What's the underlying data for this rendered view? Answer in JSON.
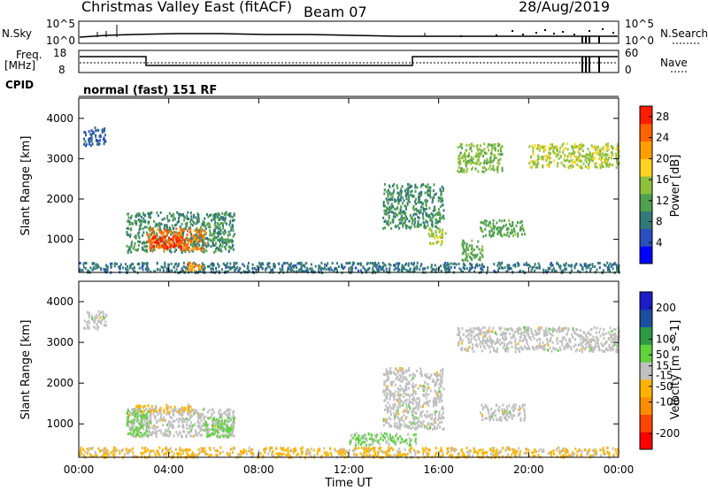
{
  "header": {
    "station": "Christmas Valley East (fitACF)",
    "beam": "Beam 07",
    "date": "28/Aug/2019"
  },
  "strip_labels": {
    "nsky": "N.Sky",
    "nsky_top": "10^5",
    "nsky_bottom": "10^0",
    "nsearch": "N.Search",
    "nsearch_top": "10^5",
    "nsearch_bottom": "10^0",
    "freq": "Freq.",
    "freq_unit": "[MHz]",
    "freq_top": "18",
    "freq_bottom": "8",
    "nave": "Nave",
    "nave_top": "60",
    "nave_bottom": "0",
    "cpid": "CPID",
    "cpid_mode": "normal (fast) 151 RF"
  },
  "colors": {
    "background": "#ffffff",
    "axis": "#000000"
  },
  "chart_data": [
    {
      "type": "heatmap",
      "name": "power",
      "xlabel": "",
      "ylabel": "Slant Range [km]",
      "x_ticks": [
        "00:00",
        "04:00",
        "08:00",
        "12:00",
        "16:00",
        "20:00",
        "00:00"
      ],
      "xlim": [
        0,
        24
      ],
      "ylim": [
        180,
        4500
      ],
      "y_ticks": [
        1000,
        2000,
        3000,
        4000
      ],
      "colorbar": {
        "label": "Power [dB]",
        "ticks": [
          4,
          8,
          12,
          16,
          20,
          24,
          28
        ],
        "range": [
          0,
          30
        ],
        "colors": [
          "#0000ff",
          "#2a4fbf",
          "#34797a",
          "#4fa04f",
          "#8fc03a",
          "#ffd21e",
          "#ff9e00",
          "#ff6300",
          "#ff1d00"
        ]
      },
      "regions": [
        {
          "x": [
            0.2,
            1.2
          ],
          "y": [
            3350,
            3800
          ],
          "value": 6
        },
        {
          "x": [
            2.1,
            6.9
          ],
          "y": [
            700,
            1700
          ],
          "value": 10
        },
        {
          "x": [
            3.0,
            5.6
          ],
          "y": [
            750,
            1300
          ],
          "value": 24
        },
        {
          "x": [
            3.2,
            4.6
          ],
          "y": [
            800,
            1100
          ],
          "value": 28
        },
        {
          "x": [
            0.0,
            24.0
          ],
          "y": [
            200,
            450
          ],
          "value": 8
        },
        {
          "x": [
            4.7,
            5.5
          ],
          "y": [
            250,
            450
          ],
          "value": 22
        },
        {
          "x": [
            13.5,
            16.2
          ],
          "y": [
            1300,
            2400
          ],
          "value": 10
        },
        {
          "x": [
            15.5,
            16.3
          ],
          "y": [
            900,
            1300
          ],
          "value": 16
        },
        {
          "x": [
            17.8,
            19.8
          ],
          "y": [
            1100,
            1500
          ],
          "value": 12
        },
        {
          "x": [
            16.8,
            18.8
          ],
          "y": [
            2700,
            3400
          ],
          "value": 14
        },
        {
          "x": [
            20.0,
            24.0
          ],
          "y": [
            2800,
            3400
          ],
          "value": 16
        },
        {
          "x": [
            17.0,
            18.0
          ],
          "y": [
            500,
            1000
          ],
          "value": 12
        }
      ]
    },
    {
      "type": "heatmap",
      "name": "velocity",
      "xlabel": "Time UT",
      "ylabel": "Slant Range [km]",
      "x_ticks": [
        "00:00",
        "04:00",
        "08:00",
        "12:00",
        "16:00",
        "20:00",
        "00:00"
      ],
      "xlim": [
        0,
        24
      ],
      "ylim": [
        180,
        4500
      ],
      "y_ticks": [
        1000,
        2000,
        3000,
        4000
      ],
      "colorbar": {
        "label": "Velocity [m s^-1]",
        "ticks": [
          200,
          100,
          50,
          15,
          -15,
          -50,
          -100,
          -200
        ],
        "range": [
          -250,
          250
        ],
        "colors": [
          "#ff0000",
          "#ff4500",
          "#ff8c00",
          "#ffb300",
          "#c0c0c0",
          "#5fd23c",
          "#2f9a46",
          "#1c4fa0",
          "#1c1cc8"
        ]
      },
      "regions": [
        {
          "x": [
            0.2,
            1.2
          ],
          "y": [
            3350,
            3800
          ],
          "value": 0
        },
        {
          "x": [
            2.1,
            6.9
          ],
          "y": [
            700,
            1400
          ],
          "value": 0
        },
        {
          "x": [
            2.1,
            3.2
          ],
          "y": [
            700,
            1400
          ],
          "value": 40
        },
        {
          "x": [
            5.5,
            6.9
          ],
          "y": [
            700,
            1200
          ],
          "value": 40
        },
        {
          "x": [
            2.5,
            5.0
          ],
          "y": [
            1300,
            1500
          ],
          "value": -40
        },
        {
          "x": [
            0.0,
            24.0
          ],
          "y": [
            200,
            450
          ],
          "value": -40
        },
        {
          "x": [
            13.5,
            16.2
          ],
          "y": [
            900,
            2400
          ],
          "value": 0
        },
        {
          "x": [
            16.8,
            24.0
          ],
          "y": [
            2800,
            3400
          ],
          "value": 0
        },
        {
          "x": [
            17.8,
            19.8
          ],
          "y": [
            1100,
            1500
          ],
          "value": 0
        },
        {
          "x": [
            12.0,
            15.0
          ],
          "y": [
            500,
            800
          ],
          "value": 40
        }
      ]
    }
  ]
}
